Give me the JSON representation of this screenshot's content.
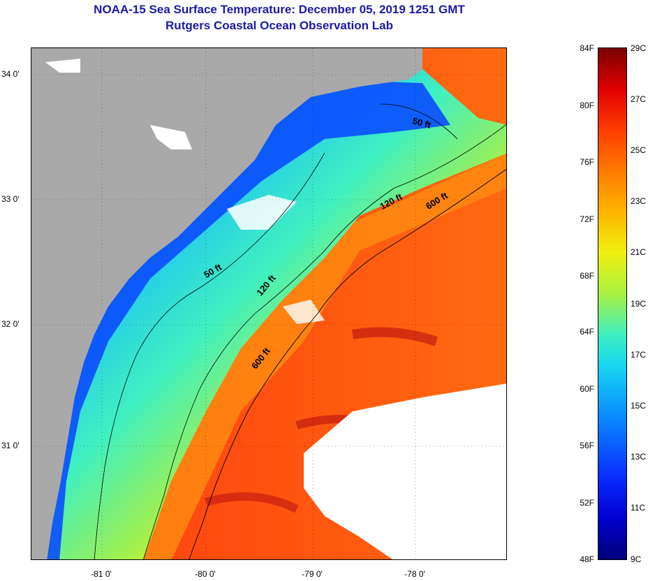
{
  "title": {
    "line1": "NOAA-15 Sea Surface Temperature:  December 05, 2019 1251 GMT",
    "line2": "Rutgers Coastal Ocean Observation Lab"
  },
  "map": {
    "lat_labels": [
      "34 0'",
      "33 0'",
      "32 0'",
      "31 0'"
    ],
    "lon_labels": [
      "-81 0'",
      "-80 0'",
      "-79 0'",
      "-78 0'"
    ],
    "depth_labels": [
      "50 ft",
      "120 ft",
      "600 ft",
      "50 ft",
      "120 ft",
      "600 ft"
    ],
    "colors": {
      "land": "#a9a9a9",
      "cloud": "#ffffff",
      "nearshore": "#0a3cff",
      "shelf": "#f0f020",
      "offshore": "#ff4a10",
      "warm_core": "#c81010"
    }
  },
  "colorbar": {
    "fahrenheit": [
      "84F",
      "80F",
      "76F",
      "72F",
      "68F",
      "64F",
      "60F",
      "56F",
      "52F",
      "48F"
    ],
    "celsius": [
      "29C",
      "27C",
      "25C",
      "23C",
      "21C",
      "19C",
      "17C",
      "15C",
      "13C",
      "11C",
      "9C"
    ]
  }
}
